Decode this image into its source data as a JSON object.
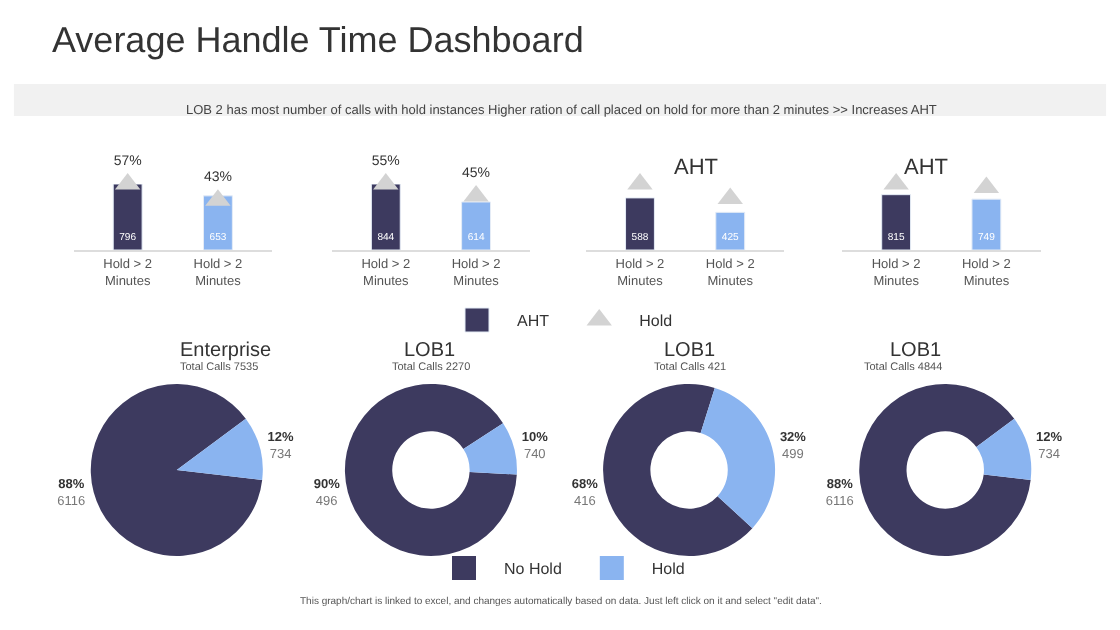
{
  "chart_data": [
    {
      "type": "other",
      "title": "Average Handle Time Dashboard",
      "subtitle": "LOB 2 has most number of calls with hold instances Higher ration of call placed on hold for more than 2 minutes >> Increases AHT",
      "annotations": [
        "This graph/chart is linked to excel, and changes automatically based on data. Just left click on it and select \"edit data\"."
      ]
    },
    {
      "type": "bar",
      "categories": [
        "Hold > 2 Minutes",
        "Hold > 2 Minutes"
      ],
      "series": [
        {
          "colors": [
            "#3d3a5f",
            "#8ab4f0"
          ],
          "values": [
            796,
            653
          ],
          "value_labels": [
            "796",
            "653"
          ]
        },
        {
          "type": "scatter",
          "axis": "y2",
          "marker": "triangle",
          "color": "#d3d3d3",
          "values": [
            57,
            43
          ],
          "value_labels": [
            "57%",
            "43%"
          ]
        }
      ]
    },
    {
      "type": "bar",
      "categories": [
        "Hold > 2 Minutes",
        "Hold > 2 Minutes"
      ],
      "legend": "bottom",
      "series": [
        {
          "name": "AHT",
          "colors": [
            "#3d3a5f",
            "#8ab4f0"
          ],
          "values": [
            844,
            614
          ],
          "value_labels": [
            "844",
            "614"
          ]
        },
        {
          "name": "Hold",
          "type": "scatter",
          "axis": "y2",
          "marker": "triangle",
          "color": "#d3d3d3",
          "values": [
            55,
            45
          ],
          "value_labels": [
            "55%",
            "45%"
          ]
        }
      ]
    },
    {
      "type": "bar",
      "categories": [
        "Hold > 2 Minutes",
        "Hold > 2 Minutes"
      ],
      "annotations": [
        "AHT"
      ],
      "series": [
        {
          "colors": [
            "#3d3a5f",
            "#8ab4f0"
          ],
          "values": [
            588,
            425
          ],
          "value_labels": [
            "588",
            "425"
          ]
        },
        {
          "type": "scatter",
          "marker": "triangle",
          "color": "#d3d3d3",
          "values": [
            745,
            582
          ]
        }
      ]
    },
    {
      "type": "bar",
      "categories": [
        "Hold > 2 Minutes",
        "Hold > 2 Minutes"
      ],
      "annotations": [
        "AHT"
      ],
      "series": [
        {
          "colors": [
            "#3d3a5f",
            "#8ab4f0"
          ],
          "values": [
            815,
            749
          ],
          "value_labels": [
            "815",
            "749"
          ]
        },
        {
          "type": "scatter",
          "marker": "triangle",
          "color": "#d3d3d3",
          "values": [
            972,
            920
          ]
        }
      ]
    },
    {
      "type": "pie",
      "title": "Enterprise",
      "subtitle": "Total Calls 7535",
      "categories": [
        null,
        null
      ],
      "values": [
        88,
        12
      ],
      "value_labels": [
        "88%\n6116",
        "12%\n734"
      ],
      "colors": [
        "#3d3a5f",
        "#8ab4f0"
      ]
    },
    {
      "type": "donut",
      "title": "LOB1",
      "subtitle": "Total Calls 2270",
      "legend": "bottom",
      "categories": [
        "No Hold",
        "Hold"
      ],
      "values": [
        90,
        10
      ],
      "value_labels": [
        "90%\n496",
        "10%\n740"
      ],
      "colors": [
        "#3d3a5f",
        "#8ab4f0"
      ]
    },
    {
      "type": "donut",
      "title": "LOB1",
      "subtitle": "Total Calls 421",
      "categories": [
        null,
        null
      ],
      "values": [
        68,
        32
      ],
      "value_labels": [
        "68%\n416",
        "32%\n499"
      ],
      "colors": [
        "#3d3a5f",
        "#8ab4f0"
      ]
    },
    {
      "type": "donut",
      "title": "LOB1",
      "subtitle": "Total Calls 4844",
      "categories": [
        null,
        null
      ],
      "values": [
        88,
        12
      ],
      "value_labels": [
        "88%\n6116",
        "12%\n734"
      ],
      "colors": [
        "#3d3a5f",
        "#8ab4f0"
      ]
    }
  ]
}
